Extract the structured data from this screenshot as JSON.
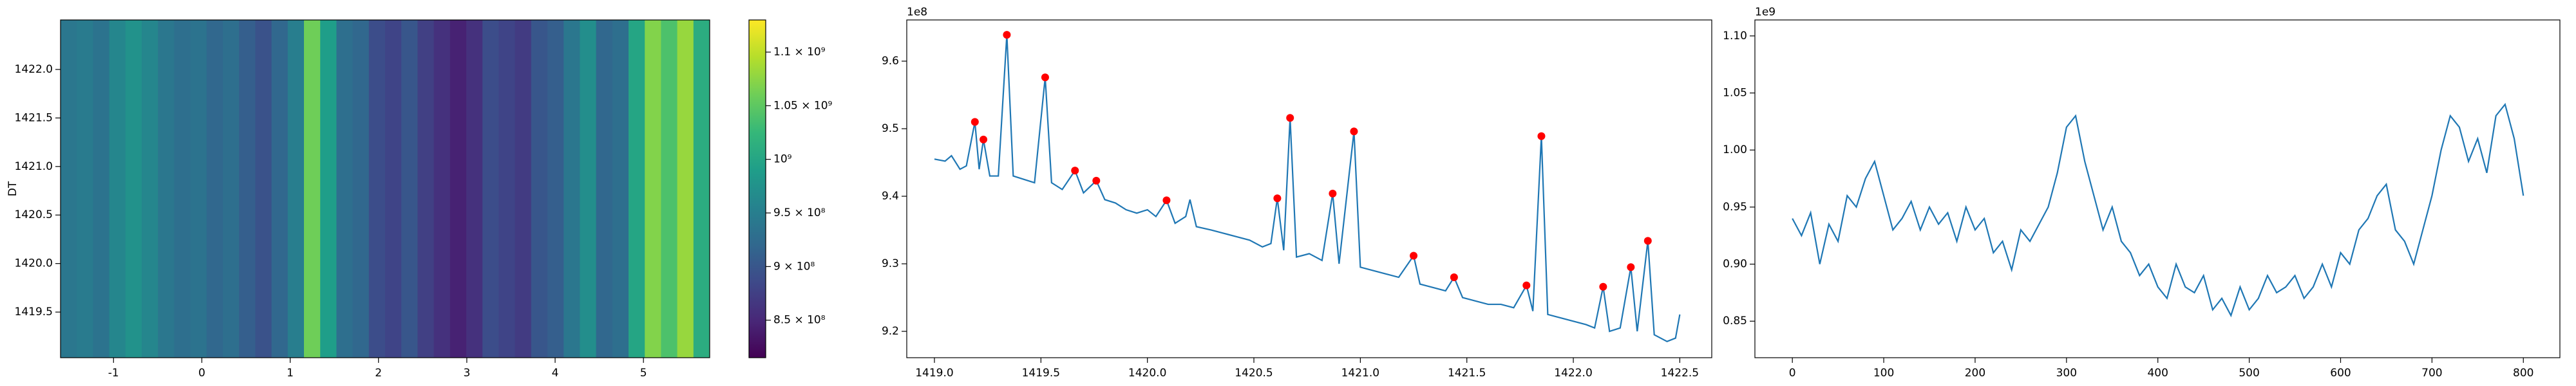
{
  "chart_data": [
    {
      "type": "heatmap",
      "ylabel": "DT",
      "xlim": [
        -1.6,
        5.75
      ],
      "xticks": [
        -1,
        0,
        1,
        2,
        3,
        4,
        5
      ],
      "ylim": [
        1419.03,
        1422.51
      ],
      "yticks": [
        1419.5,
        {
          "value": 1420,
          "label": "1420.0"
        },
        1420.5,
        {
          "value": 1421,
          "label": "1421.0"
        },
        1421.5,
        {
          "value": 1422,
          "label": "1422.0"
        }
      ],
      "x_edges": [
        -1.6,
        -1.41625,
        -1.2325,
        -1.04875,
        -0.865,
        -0.68125,
        -0.4975,
        -0.31375,
        -0.13,
        0.05375,
        0.2375,
        0.42125,
        0.605,
        0.78875,
        0.9725,
        1.15625,
        1.34,
        1.52375,
        1.7075,
        1.89125,
        2.075,
        2.25875,
        2.4425,
        2.62625,
        2.81,
        2.99375,
        3.1775,
        3.36125,
        3.545,
        3.72875,
        3.9125,
        4.09625,
        4.28,
        4.46375,
        4.6475,
        4.83125,
        5.015,
        5.19875,
        5.3825,
        5.56625,
        5.75
      ],
      "values": [
        940000000,
        945000000,
        935000000,
        960000000,
        975000000,
        960000000,
        940000000,
        930000000,
        935000000,
        920000000,
        930000000,
        910000000,
        895000000,
        920000000,
        950000000,
        1060000000,
        990000000,
        930000000,
        920000000,
        890000000,
        880000000,
        900000000,
        875000000,
        860000000,
        845000000,
        860000000,
        890000000,
        880000000,
        870000000,
        900000000,
        910000000,
        940000000,
        970000000,
        920000000,
        930000000,
        1000000000,
        1070000000,
        1040000000,
        1080000000,
        1010000000
      ],
      "clim": [
        815000000,
        1130000000
      ],
      "colormap": [
        "#440154",
        "#482878",
        "#3e4989",
        "#31688e",
        "#26828e",
        "#1f9e89",
        "#35b779",
        "#6ece58",
        "#b5de2b",
        "#fde725"
      ],
      "colorbar_ticks": [
        {
          "value": 850000000,
          "label": "8.5 × 10⁸"
        },
        {
          "value": 900000000,
          "label": "9 × 10⁸"
        },
        {
          "value": 950000000,
          "label": "9.5 × 10⁸"
        },
        {
          "value": 1000000000,
          "label": "10⁹"
        },
        {
          "value": 1050000000,
          "label": "1.05 × 10⁹"
        },
        {
          "value": 1100000000,
          "label": "1.1 × 10⁹"
        }
      ]
    },
    {
      "type": "line",
      "offset_label": "1e8",
      "xlim": [
        1418.87,
        1422.65
      ],
      "xticks": [
        {
          "value": 1419,
          "label": "1419.0"
        },
        1419.5,
        {
          "value": 1420,
          "label": "1420.0"
        },
        1420.5,
        {
          "value": 1421,
          "label": "1421.0"
        },
        1421.5,
        {
          "value": 1422,
          "label": "1422.0"
        },
        1422.5
      ],
      "ylim": [
        9.161,
        9.661
      ],
      "yticks": [
        9.2,
        9.3,
        9.4,
        9.5,
        9.6
      ],
      "series": [
        {
          "color": "#1f77b4",
          "mode": "line",
          "x": [
            1419.0,
            1419.05,
            1419.08,
            1419.12,
            1419.15,
            1419.19,
            1419.21,
            1419.23,
            1419.26,
            1419.3,
            1419.34,
            1419.37,
            1419.42,
            1419.47,
            1419.52,
            1419.55,
            1419.6,
            1419.66,
            1419.7,
            1419.76,
            1419.8,
            1419.85,
            1419.9,
            1419.95,
            1420.0,
            1420.04,
            1420.09,
            1420.13,
            1420.18,
            1420.2,
            1420.23,
            1420.3,
            1420.36,
            1420.42,
            1420.48,
            1420.54,
            1420.58,
            1420.61,
            1420.64,
            1420.67,
            1420.7,
            1420.76,
            1420.82,
            1420.87,
            1420.9,
            1420.97,
            1421.0,
            1421.06,
            1421.12,
            1421.18,
            1421.25,
            1421.28,
            1421.34,
            1421.4,
            1421.44,
            1421.48,
            1421.54,
            1421.6,
            1421.66,
            1421.72,
            1421.78,
            1421.81,
            1421.85,
            1421.88,
            1421.94,
            1422.0,
            1422.06,
            1422.1,
            1422.14,
            1422.17,
            1422.22,
            1422.27,
            1422.3,
            1422.35,
            1422.38,
            1422.44,
            1422.48,
            1422.5
          ],
          "values": [
            9.455,
            9.452,
            9.46,
            9.44,
            9.445,
            9.51,
            9.44,
            9.484,
            9.43,
            9.43,
            9.639,
            9.43,
            9.425,
            9.42,
            9.576,
            9.42,
            9.41,
            9.438,
            9.405,
            9.423,
            9.395,
            9.39,
            9.38,
            9.375,
            9.38,
            9.37,
            9.394,
            9.36,
            9.37,
            9.395,
            9.355,
            9.35,
            9.345,
            9.34,
            9.335,
            9.325,
            9.33,
            9.397,
            9.32,
            9.516,
            9.31,
            9.315,
            9.305,
            9.404,
            9.3,
            9.496,
            9.295,
            9.29,
            9.285,
            9.28,
            9.312,
            9.27,
            9.265,
            9.26,
            9.28,
            9.25,
            9.245,
            9.24,
            9.24,
            9.235,
            9.268,
            9.23,
            9.489,
            9.225,
            9.22,
            9.215,
            9.21,
            9.205,
            9.266,
            9.2,
            9.205,
            9.295,
            9.2,
            9.334,
            9.195,
            9.185,
            9.19,
            9.225
          ]
        },
        {
          "color": "#ff0000",
          "mode": "markers",
          "x": [
            1419.19,
            1419.23,
            1419.34,
            1419.52,
            1419.66,
            1419.76,
            1420.09,
            1420.61,
            1420.67,
            1420.87,
            1420.97,
            1421.25,
            1421.44,
            1421.78,
            1421.85,
            1422.14,
            1422.27,
            1422.35
          ],
          "values": [
            9.51,
            9.484,
            9.639,
            9.576,
            9.438,
            9.423,
            9.394,
            9.397,
            9.516,
            9.404,
            9.496,
            9.312,
            9.28,
            9.268,
            9.489,
            9.266,
            9.295,
            9.334
          ]
        }
      ]
    },
    {
      "type": "line",
      "offset_label": "1e9",
      "xlim": [
        -41,
        840
      ],
      "xticks": [
        0,
        100,
        200,
        300,
        400,
        500,
        600,
        700,
        800
      ],
      "ylim": [
        0.818,
        1.114
      ],
      "yticks": [
        0.85,
        {
          "value": 0.9,
          "label": "0.90"
        },
        0.95,
        {
          "value": 1,
          "label": "1.00"
        },
        1.05,
        {
          "value": 1.1,
          "label": "1.10"
        }
      ],
      "series": [
        {
          "color": "#1f77b4",
          "mode": "line",
          "x": [
            0,
            10,
            20,
            30,
            40,
            50,
            60,
            70,
            80,
            90,
            100,
            110,
            120,
            130,
            140,
            150,
            160,
            170,
            180,
            190,
            200,
            210,
            220,
            230,
            240,
            250,
            260,
            270,
            280,
            290,
            300,
            310,
            320,
            330,
            340,
            350,
            360,
            370,
            380,
            390,
            400,
            410,
            420,
            430,
            440,
            450,
            460,
            470,
            480,
            490,
            500,
            510,
            520,
            530,
            540,
            550,
            560,
            570,
            580,
            590,
            600,
            610,
            620,
            630,
            640,
            650,
            660,
            670,
            680,
            690,
            700,
            710,
            720,
            730,
            740,
            750,
            760,
            770,
            780,
            790,
            800
          ],
          "values": [
            0.94,
            0.925,
            0.945,
            0.9,
            0.935,
            0.92,
            0.96,
            0.95,
            0.975,
            0.99,
            0.96,
            0.93,
            0.94,
            0.955,
            0.93,
            0.95,
            0.935,
            0.945,
            0.92,
            0.95,
            0.93,
            0.94,
            0.91,
            0.92,
            0.895,
            0.93,
            0.92,
            0.935,
            0.95,
            0.98,
            1.02,
            1.03,
            0.99,
            0.96,
            0.93,
            0.95,
            0.92,
            0.91,
            0.89,
            0.9,
            0.88,
            0.87,
            0.9,
            0.88,
            0.875,
            0.89,
            0.86,
            0.87,
            0.855,
            0.88,
            0.86,
            0.87,
            0.89,
            0.875,
            0.88,
            0.89,
            0.87,
            0.88,
            0.9,
            0.88,
            0.91,
            0.9,
            0.93,
            0.94,
            0.96,
            0.97,
            0.93,
            0.92,
            0.9,
            0.93,
            0.96,
            1.0,
            1.03,
            1.02,
            0.99,
            1.01,
            0.98,
            1.03,
            1.04,
            1.01,
            0.96
          ]
        }
      ]
    }
  ]
}
